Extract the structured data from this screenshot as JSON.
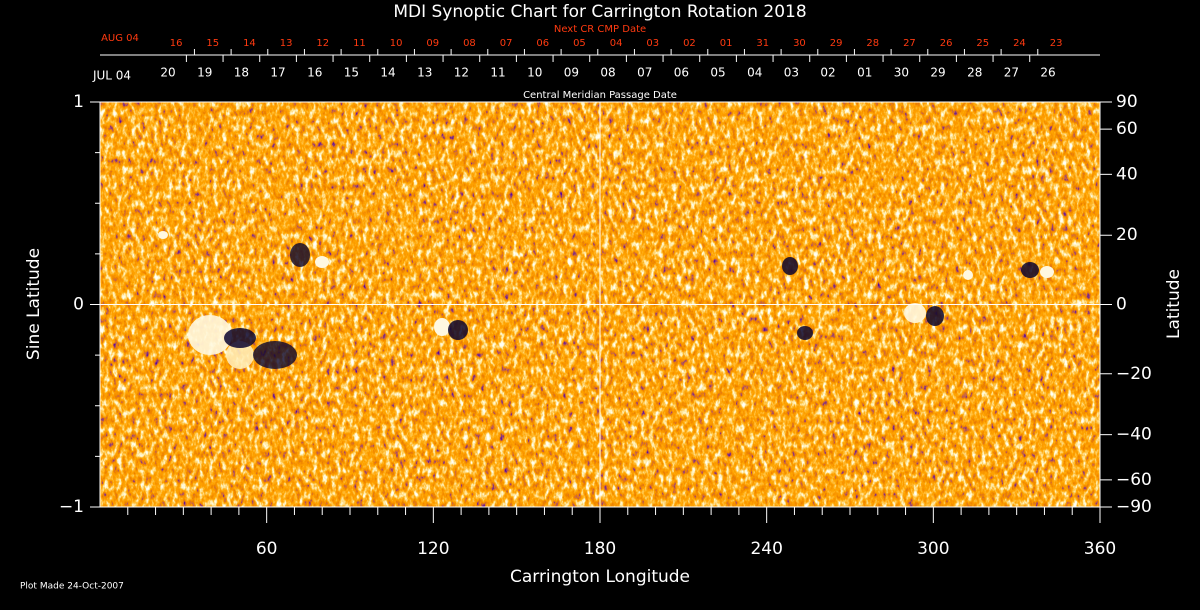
{
  "chart_data": {
    "type": "synoptic",
    "title": "MDI Synoptic Chart for Carrington Rotation 2018",
    "x_label": "Carrington Longitude",
    "y_label": "Sine Latitude",
    "y2_label": "Latitude",
    "xlim": [
      0,
      360
    ],
    "xticks": [
      60,
      120,
      180,
      240,
      300,
      360
    ],
    "ylim": [
      -1,
      1
    ],
    "yticks": [
      {
        "value": -1,
        "label": "−1"
      },
      0,
      1
    ],
    "y2lim": [
      -90,
      90
    ],
    "y2scale": "sine",
    "y2ticks": [
      90,
      60,
      40,
      20,
      0,
      {
        "value": -20,
        "label": "−20"
      },
      {
        "value": -40,
        "label": "−40"
      },
      {
        "value": -60,
        "label": "−60"
      },
      {
        "value": -90,
        "label": "−90"
      }
    ],
    "date_axes": [
      {
        "title": "Next CR CMP Date",
        "start_label": "AUG 04",
        "color": "#ff3a10",
        "labels": [
          "16",
          "15",
          "14",
          "13",
          "12",
          "11",
          "10",
          "09",
          "08",
          "07",
          "06",
          "05",
          "04",
          "03",
          "02",
          "01",
          "31",
          "30",
          "29",
          "28",
          "27",
          "26",
          "25",
          "24",
          "23"
        ],
        "x": [
          27.4,
          40.6,
          53.8,
          67.0,
          80.2,
          93.4,
          106.6,
          119.8,
          133.0,
          146.2,
          159.4,
          172.6,
          185.8,
          199.0,
          212.2,
          225.4,
          238.6,
          251.8,
          265.0,
          278.2,
          291.4,
          304.6,
          317.8,
          331.0,
          344.2
        ]
      },
      {
        "title": "Central Meridian Passage Date",
        "start_label": "JUL 04",
        "color": "#ffffff",
        "labels": [
          "20",
          "19",
          "18",
          "17",
          "16",
          "15",
          "14",
          "13",
          "12",
          "11",
          "10",
          "09",
          "08",
          "07",
          "06",
          "05",
          "04",
          "03",
          "02",
          "01",
          "30",
          "29",
          "28",
          "27",
          "26"
        ],
        "x": [
          24.5,
          37.7,
          50.9,
          64.1,
          77.3,
          90.5,
          103.7,
          116.9,
          130.1,
          143.3,
          156.5,
          169.7,
          182.9,
          196.1,
          209.3,
          222.5,
          235.7,
          248.9,
          262.1,
          275.3,
          288.5,
          301.7,
          314.9,
          328.1,
          341.3
        ]
      }
    ]
  },
  "footer": "Plot Made 24-Oct-2007"
}
